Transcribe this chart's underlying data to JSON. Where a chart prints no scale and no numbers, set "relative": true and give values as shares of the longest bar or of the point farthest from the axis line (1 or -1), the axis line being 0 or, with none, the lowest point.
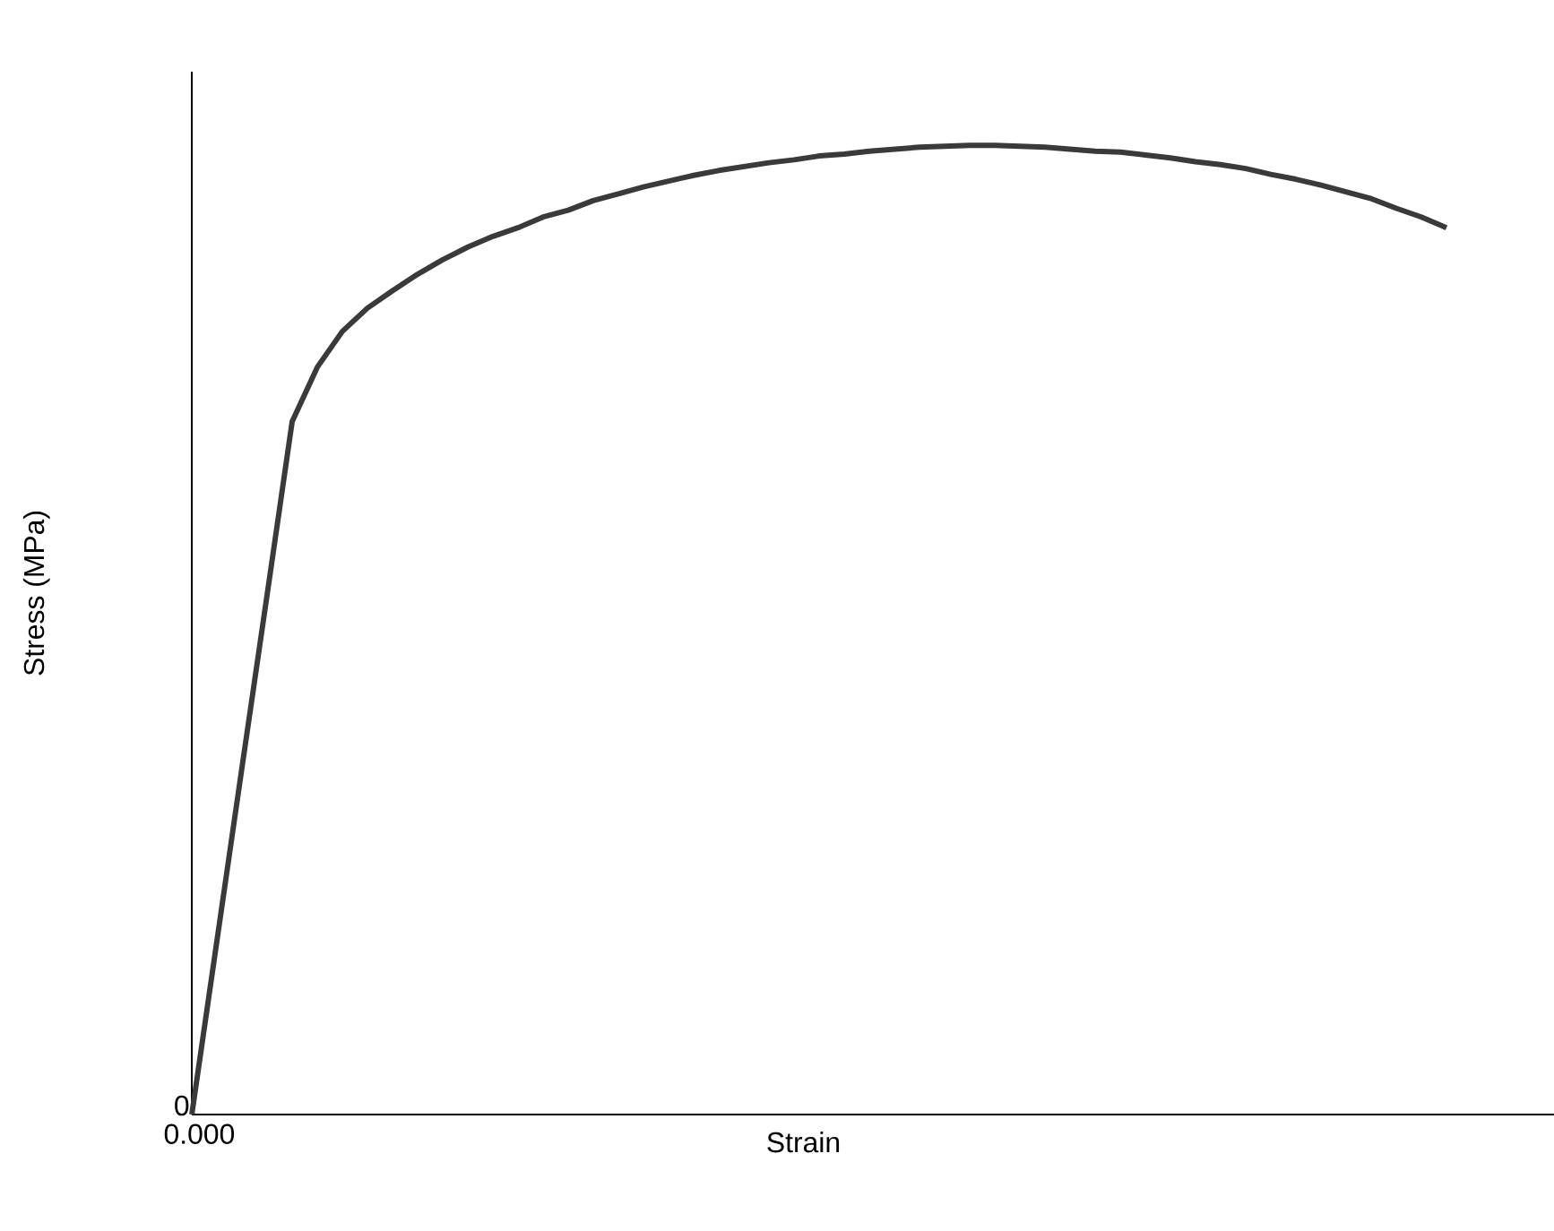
{
  "chart_data": {
    "type": "line",
    "relative": true,
    "xlabel": "Strain",
    "ylabel": "Stress (MPa)",
    "annotations": [
      "0",
      "0.000"
    ],
    "color": "#3a3a3a",
    "categories": [
      null,
      null,
      null,
      null,
      null,
      null,
      null,
      null,
      null,
      null,
      null,
      null,
      null,
      null,
      null,
      null,
      null,
      null,
      null,
      null,
      null,
      null,
      null,
      null,
      null,
      null,
      null,
      null,
      null,
      null,
      null,
      null,
      null,
      null,
      null,
      null,
      null,
      null,
      null,
      null,
      null,
      null,
      null,
      null,
      null,
      null,
      null,
      null,
      null,
      null,
      null
    ],
    "values": [
      0,
      0.179,
      0.358,
      0.536,
      0.715,
      0.771,
      0.808,
      0.832,
      0.85,
      0.867,
      0.882,
      0.895,
      0.906,
      0.915,
      0.926,
      0.933,
      0.943,
      0.95,
      0.957,
      0.963,
      0.969,
      0.974,
      0.978,
      0.982,
      0.985,
      0.989,
      0.991,
      0.994,
      0.996,
      0.998,
      0.999,
      1,
      1,
      0.999,
      0.998,
      0.996,
      0.994,
      0.993,
      0.99,
      0.987,
      0.983,
      0.98,
      0.976,
      0.97,
      0.965,
      0.959,
      0.952,
      0.945,
      0.935,
      0.926,
      0.915
    ]
  }
}
